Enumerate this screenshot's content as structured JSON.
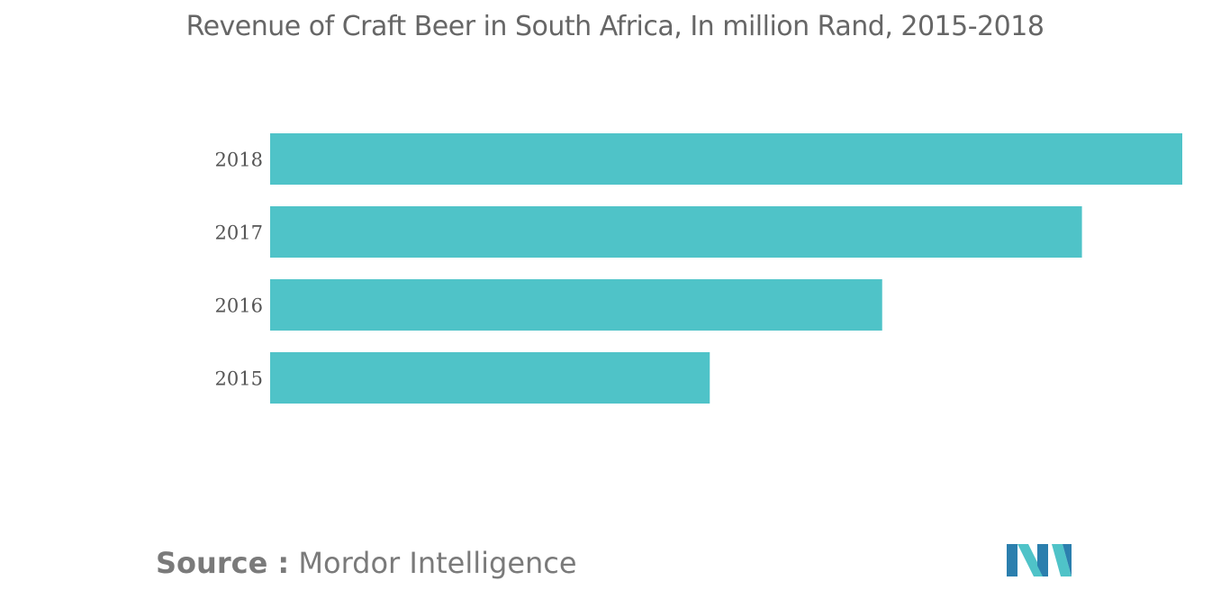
{
  "chart_data": {
    "type": "bar",
    "orientation": "horizontal",
    "title": "Revenue of Craft Beer in South Africa, In million Rand, 2015-2018",
    "categories": [
      "2018",
      "2017",
      "2016",
      "2015"
    ],
    "values": [
      100,
      89,
      67.1,
      48.2
    ],
    "xlabel": "",
    "ylabel": "",
    "xlim": [
      0,
      100
    ],
    "grid": false,
    "bar_color": "#4fc3c8"
  },
  "source": {
    "label": "Source :",
    "text": "Mordor Intelligence"
  },
  "logo": {
    "icon": "mordor-intelligence-logo",
    "colors": [
      "#2b7fae",
      "#4fc3c8"
    ]
  }
}
